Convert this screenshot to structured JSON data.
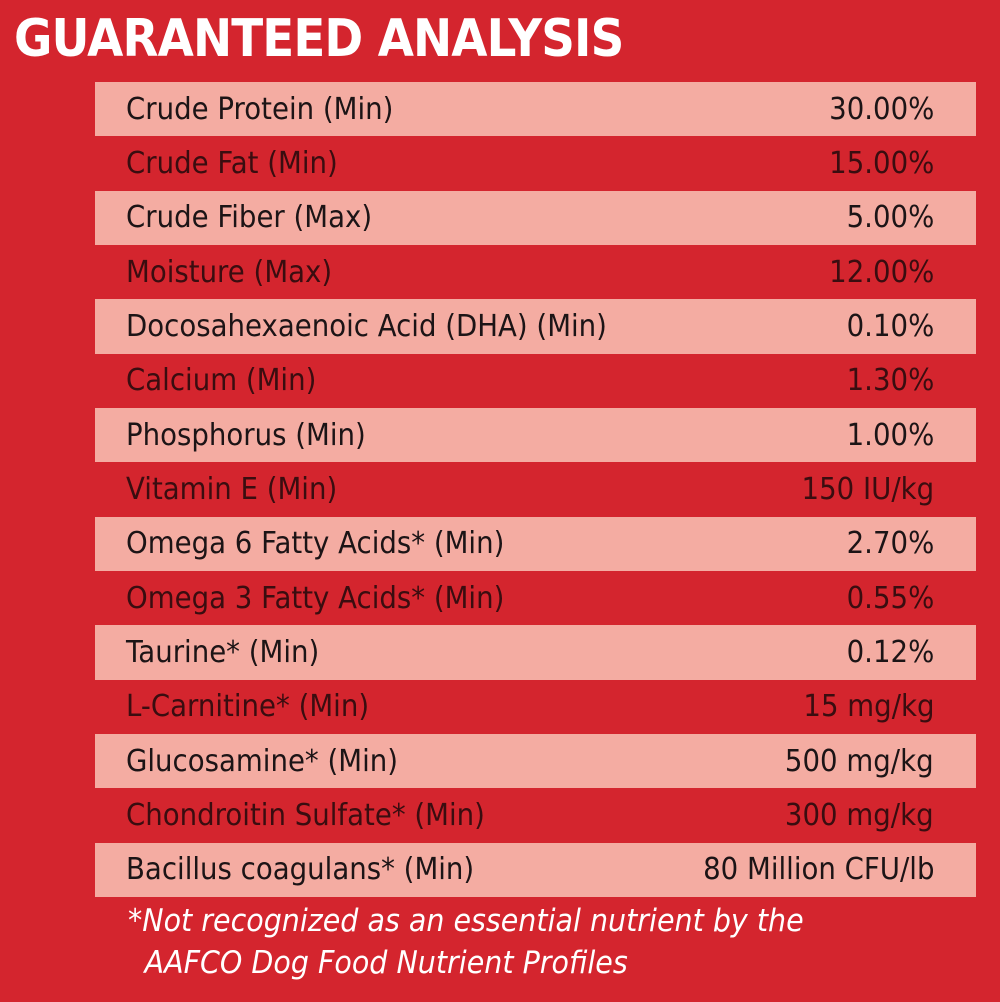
{
  "title": "GUARANTEED ANALYSIS",
  "rows": [
    {
      "label": "Crude Protein (Min)",
      "value": "30.00%"
    },
    {
      "label": "Crude Fat (Min)",
      "value": "15.00%"
    },
    {
      "label": "Crude Fiber (Max)",
      "value": "5.00%"
    },
    {
      "label": "Moisture (Max)",
      "value": "12.00%"
    },
    {
      "label": "Docosahexaenoic Acid (DHA) (Min)",
      "value": "0.10%"
    },
    {
      "label": "Calcium (Min)",
      "value": "1.30%"
    },
    {
      "label": "Phosphorus (Min)",
      "value": "1.00%"
    },
    {
      "label": "Vitamin E (Min)",
      "value": "150 IU/kg"
    },
    {
      "label": "Omega 6 Fatty Acids* (Min)",
      "value": "2.70%"
    },
    {
      "label": "Omega 3 Fatty Acids* (Min)",
      "value": "0.55%"
    },
    {
      "label": "Taurine* (Min)",
      "value": "0.12%"
    },
    {
      "label": "L-Carnitine* (Min)",
      "value": "15 mg/kg"
    },
    {
      "label": "Glucosamine* (Min)",
      "value": "500 mg/kg"
    },
    {
      "label": "Chondroitin Sulfate* (Min)",
      "value": "300 mg/kg"
    },
    {
      "label": "Bacillus coagulans* (Min)",
      "value": "80 Million CFU/lb"
    }
  ],
  "footnote": {
    "line1": "*Not recognized as an essential nutrient by the",
    "line2": "AAFCO Dog Food Nutrient Profiles"
  },
  "colors": {
    "background": "#d4252e",
    "row_light": "#f4aca2",
    "text_dark": "#1c1416",
    "text_white": "#ffffff"
  }
}
